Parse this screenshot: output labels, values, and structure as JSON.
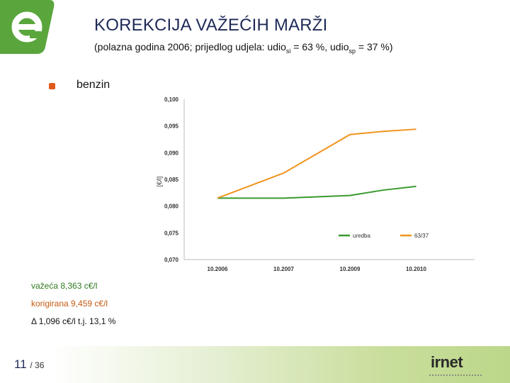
{
  "header": {
    "title": "KOREKCIJA VAŽEĆIH MARŽI",
    "subtitle_pre": "(polazna godina 2006; prijedlog udjela: udio",
    "subtitle_sub1": "si",
    "subtitle_mid": " = 63 %, udio",
    "subtitle_sub2": "sp",
    "subtitle_post": " = 37 %)"
  },
  "bullet": {
    "label": "benzin"
  },
  "notes": {
    "line1": "važeća 8,363 c€/l",
    "line2": "korigirana 9,459 c€/l",
    "line3": "Δ 1,096 c€/l t.j. 13,1 %"
  },
  "footer": {
    "page": "11",
    "total": "/ 36",
    "brand": "irnet"
  },
  "colors": {
    "green": "#3a9a2e",
    "orange": "#f0941e",
    "title": "#1f2a57"
  },
  "chart_data": {
    "type": "line",
    "categories": [
      "10.2006",
      "10.2007",
      "10.2009",
      "10.2010"
    ],
    "ylabel": "[€/l]",
    "ylim": [
      0.07,
      0.1
    ],
    "yticks": [
      "0,100",
      "0,095",
      "0,090",
      "0,085",
      "0,080",
      "0,075",
      "0,070"
    ],
    "grid": true,
    "legend_position": "bottom-right",
    "series": [
      {
        "name": "uredba",
        "color": "#3a9a2e",
        "x": [
          0,
          1,
          2,
          2.5,
          3
        ],
        "values": [
          0.0815,
          0.0815,
          0.082,
          0.083,
          0.0837
        ]
      },
      {
        "name": "63/37",
        "color": "#f0941e",
        "x": [
          0,
          1,
          2,
          2.5,
          3
        ],
        "values": [
          0.0815,
          0.0862,
          0.0934,
          0.094,
          0.0944
        ]
      }
    ]
  }
}
